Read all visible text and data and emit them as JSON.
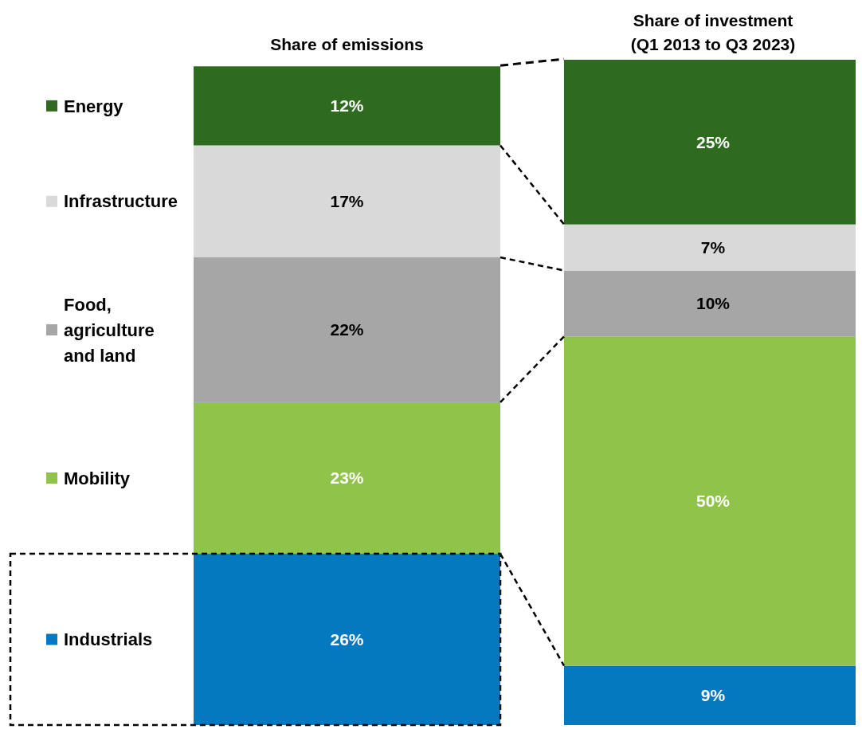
{
  "chart_data": {
    "type": "bar",
    "stacked": true,
    "categories": [
      "Share of emissions",
      "Share of investment (Q1 2013 to Q3 2023)"
    ],
    "legend": "left",
    "series": [
      {
        "name": "Industrials",
        "color": "#0479c0",
        "values": [
          26,
          9
        ],
        "value_labels": [
          "26%",
          "9%"
        ]
      },
      {
        "name": "Mobility",
        "color": "#8fc34a",
        "values": [
          23,
          50
        ],
        "value_labels": [
          "23%",
          "50%"
        ]
      },
      {
        "name": "Food, agriculture and land",
        "color": "#a6a6a6",
        "values": [
          22,
          10
        ],
        "value_labels": [
          "22%",
          "10%"
        ]
      },
      {
        "name": "Infrastructure",
        "color": "#d9d9d9",
        "values": [
          17,
          7
        ],
        "value_labels": [
          "17%",
          "7%"
        ]
      },
      {
        "name": "Energy",
        "color": "#2e6b1f",
        "values": [
          12,
          25
        ],
        "value_labels": [
          "12%",
          "25%"
        ]
      }
    ]
  }
}
